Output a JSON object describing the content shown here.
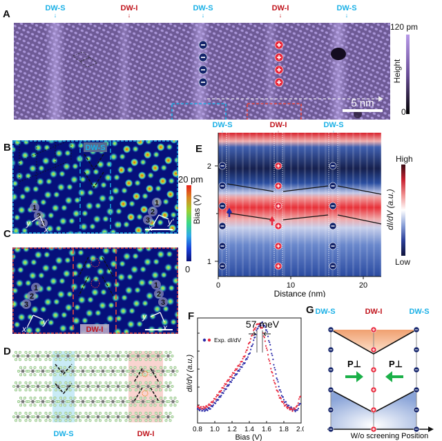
{
  "figure": {
    "panels": {
      "A": {
        "label": "A",
        "top_labels": [
          "DW-S",
          "DW-I",
          "DW-S",
          "DW-I",
          "DW-S"
        ],
        "top_label_types": [
          "S",
          "I",
          "S",
          "I",
          "S"
        ],
        "colorbar": {
          "max_label": "120 pm",
          "min_label": "0",
          "title": "Height",
          "colors": [
            "#000000",
            "#b89ae8"
          ]
        },
        "scale_bar": "5 nm",
        "minus_count": 4,
        "plus_count": 4,
        "minus_symbol": "−",
        "plus_symbol": "+"
      },
      "B": {
        "label": "B",
        "wall_label": "DW-S",
        "site_numbers": [
          "1",
          "2",
          "3"
        ],
        "axes_left": [
          "y",
          "x"
        ],
        "axes_right": [
          "x'",
          "y'"
        ],
        "frame_color": "#1ab0e6"
      },
      "C": {
        "label": "C",
        "wall_label": "DW-I",
        "site_numbers": [
          "1",
          "2",
          "3"
        ],
        "axes_left": [
          "x'",
          "y'"
        ],
        "axes_right": [
          "y",
          "x"
        ],
        "frame_color": "#e8453c"
      },
      "BC_colorbar": {
        "max_label": "20 pm",
        "min_label": "0"
      },
      "D": {
        "label": "D",
        "labels": [
          "DW-S",
          "DW-I"
        ]
      },
      "E": {
        "label": "E",
        "top_labels": [
          "DW-S",
          "DW-I",
          "DW-S"
        ],
        "top_label_types": [
          "S",
          "I",
          "S"
        ],
        "ylabel": "Bias (V)",
        "xlabel": "Distance (nm)",
        "yticks": [
          "2",
          "1"
        ],
        "xticks": [
          "0",
          "10",
          "20"
        ],
        "colorbar": {
          "max_label": "High",
          "min_label": "Low",
          "title": "dI/dV (a.u.)"
        }
      },
      "F": {
        "label": "F",
        "annotation": "57 meV",
        "legend": "Exp. dI/dV",
        "ylabel": "dI/dV (a.u.)",
        "xlabel": "Bias (V)",
        "xticks": [
          "0.8",
          "1.0",
          "1.2",
          "1.4",
          "1.6",
          "1.8",
          "2.0"
        ]
      },
      "G": {
        "label": "G",
        "top_labels": [
          "DW-S",
          "DW-I",
          "DW-S"
        ],
        "p_label": "P⊥",
        "xlabel": "W/o screening Position"
      }
    }
  },
  "chart_data": {
    "type": "scatter",
    "title": "",
    "xlabel": "Bias (V)",
    "ylabel": "dI/dV (a.u.)",
    "xlim": [
      0.8,
      2.0
    ],
    "ylim": [
      0,
      1.05
    ],
    "xticks": [
      0.8,
      1.0,
      1.2,
      1.4,
      1.6,
      1.8,
      2.0
    ],
    "annotation": "57 meV peak shift",
    "legend_position": "top-left",
    "series": [
      {
        "name": "Exp. dI/dV (DW-S)",
        "color": "#2a2aa8",
        "x": [
          0.8,
          0.85,
          0.9,
          0.95,
          1.0,
          1.05,
          1.1,
          1.15,
          1.2,
          1.25,
          1.3,
          1.35,
          1.4,
          1.45,
          1.5,
          1.55,
          1.6,
          1.65,
          1.7,
          1.75,
          1.8,
          1.85,
          1.9,
          1.95,
          2.0
        ],
        "y": [
          0.14,
          0.13,
          0.13,
          0.15,
          0.2,
          0.25,
          0.31,
          0.37,
          0.43,
          0.49,
          0.55,
          0.61,
          0.69,
          0.82,
          0.96,
          1.0,
          0.93,
          0.74,
          0.52,
          0.34,
          0.23,
          0.17,
          0.14,
          0.12,
          0.22
        ]
      },
      {
        "name": "Exp. dI/dV (DW-I)",
        "color": "#e8283c",
        "x": [
          0.8,
          0.85,
          0.9,
          0.95,
          1.0,
          1.05,
          1.1,
          1.15,
          1.2,
          1.25,
          1.3,
          1.35,
          1.4,
          1.45,
          1.5,
          1.55,
          1.6,
          1.65,
          1.7,
          1.75,
          1.8,
          1.85,
          1.9,
          1.95,
          2.0
        ],
        "y": [
          0.16,
          0.15,
          0.16,
          0.19,
          0.24,
          0.3,
          0.36,
          0.42,
          0.48,
          0.54,
          0.6,
          0.68,
          0.8,
          0.92,
          1.0,
          0.94,
          0.75,
          0.55,
          0.38,
          0.26,
          0.19,
          0.15,
          0.13,
          0.16,
          0.3
        ]
      }
    ]
  }
}
